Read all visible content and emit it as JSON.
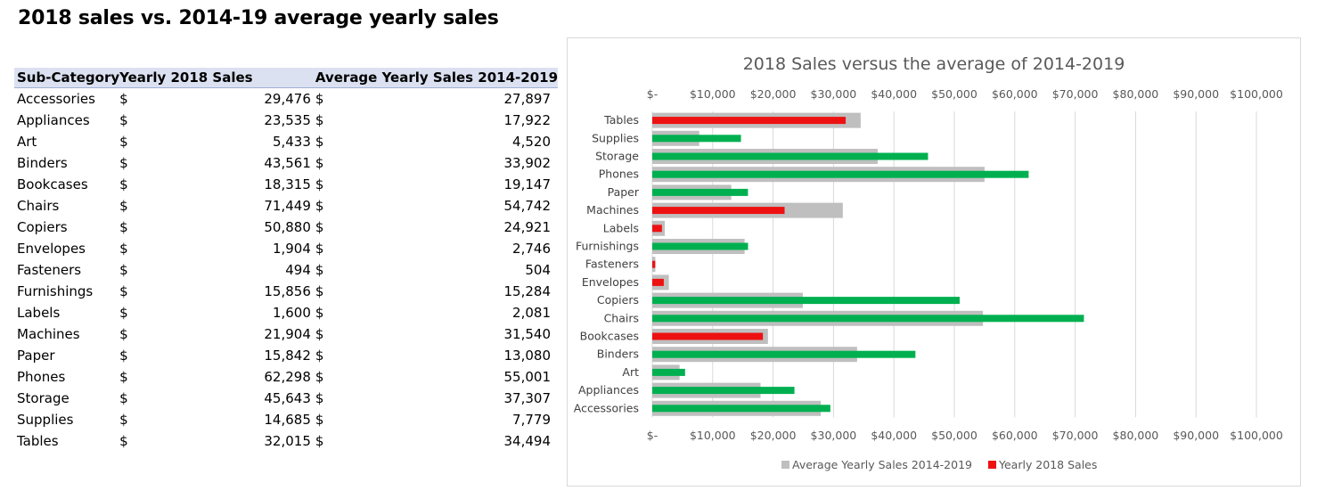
{
  "page": {
    "title": "2018 sales vs. 2014-19 average yearly sales"
  },
  "table": {
    "headers": [
      "Sub-Category",
      "Yearly 2018 Sales",
      "Average Yearly Sales 2014-2019"
    ],
    "currency": "$",
    "rows": [
      {
        "category": "Accessories",
        "y2018": "29,476",
        "avg": "27,897"
      },
      {
        "category": "Appliances",
        "y2018": "23,535",
        "avg": "17,922"
      },
      {
        "category": "Art",
        "y2018": "5,433",
        "avg": "4,520"
      },
      {
        "category": "Binders",
        "y2018": "43,561",
        "avg": "33,902"
      },
      {
        "category": "Bookcases",
        "y2018": "18,315",
        "avg": "19,147"
      },
      {
        "category": "Chairs",
        "y2018": "71,449",
        "avg": "54,742"
      },
      {
        "category": "Copiers",
        "y2018": "50,880",
        "avg": "24,921"
      },
      {
        "category": "Envelopes",
        "y2018": "1,904",
        "avg": "2,746"
      },
      {
        "category": "Fasteners",
        "y2018": "494",
        "avg": "504"
      },
      {
        "category": "Furnishings",
        "y2018": "15,856",
        "avg": "15,284"
      },
      {
        "category": "Labels",
        "y2018": "1,600",
        "avg": "2,081"
      },
      {
        "category": "Machines",
        "y2018": "21,904",
        "avg": "31,540"
      },
      {
        "category": "Paper",
        "y2018": "15,842",
        "avg": "13,080"
      },
      {
        "category": "Phones",
        "y2018": "62,298",
        "avg": "55,001"
      },
      {
        "category": "Storage",
        "y2018": "45,643",
        "avg": "37,307"
      },
      {
        "category": "Supplies",
        "y2018": "14,685",
        "avg": "7,779"
      },
      {
        "category": "Tables",
        "y2018": "32,015",
        "avg": "34,494"
      }
    ]
  },
  "chart_data": {
    "type": "bar",
    "orientation": "horizontal",
    "title": "2018 Sales versus the average of 2014-2019",
    "categories": [
      "Tables",
      "Supplies",
      "Storage",
      "Phones",
      "Paper",
      "Machines",
      "Labels",
      "Furnishings",
      "Fasteners",
      "Envelopes",
      "Copiers",
      "Chairs",
      "Bookcases",
      "Binders",
      "Art",
      "Appliances",
      "Accessories"
    ],
    "series": [
      {
        "name": "Average Yearly Sales 2014-2019",
        "color": "#bfbfbf",
        "values": [
          34494,
          7779,
          37307,
          55001,
          13080,
          31540,
          2081,
          15284,
          504,
          2746,
          24921,
          54742,
          19147,
          33902,
          4520,
          17922,
          27897
        ]
      },
      {
        "name": "Yearly 2018 Sales",
        "color": "#ee1111",
        "values": [
          32015,
          14685,
          45643,
          62298,
          15842,
          21904,
          1600,
          15856,
          494,
          1904,
          50880,
          71449,
          18315,
          43561,
          5433,
          23535,
          29476
        ]
      }
    ],
    "bar_colors_2018": {
      "above_average": "#00b050",
      "below_average": "#ee1111"
    },
    "xlim": [
      0,
      100000
    ],
    "xticks": [
      "$-",
      "$10,000",
      "$20,000",
      "$30,000",
      "$40,000",
      "$50,000",
      "$60,000",
      "$70,000",
      "$80,000",
      "$90,000",
      "$100,000"
    ],
    "xtick_values": [
      0,
      10000,
      20000,
      30000,
      40000,
      50000,
      60000,
      70000,
      80000,
      90000,
      100000
    ],
    "axis_labels_top_and_bottom": true,
    "grid": true,
    "legend": "bottom"
  }
}
